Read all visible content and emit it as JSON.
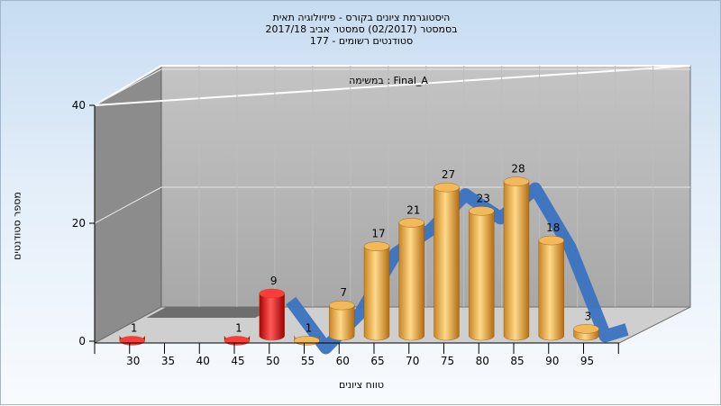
{
  "titles": {
    "line1": "היסטוגרמת ציונים בקורס - פיזיולוגיה תאית",
    "line2": "בסמסטר  (02/2017)  סמסטר אביב 2017/18",
    "line3": "סטודנטים רשומים - 177"
  },
  "chart_data": {
    "type": "bar",
    "title": "היסטוגרמת ציונים בקורס - פיזיולוגיה תאית",
    "xlabel": "טווח ציונים",
    "ylabel": "מספר סטודנטים",
    "annotation": "במשימה : Final_A",
    "categories": [
      "30",
      "35",
      "40",
      "45",
      "50",
      "55",
      "60",
      "65",
      "70",
      "75",
      "80",
      "85",
      "90",
      "95"
    ],
    "values": [
      1,
      null,
      null,
      1,
      9,
      1,
      7,
      17,
      21,
      27,
      23,
      28,
      18,
      3
    ],
    "bar_colors": [
      "red",
      null,
      null,
      "red",
      "red",
      "orange",
      "orange",
      "orange",
      "orange",
      "orange",
      "orange",
      "orange",
      "orange",
      "orange"
    ],
    "yticks": [
      0,
      20,
      40
    ],
    "ylim": [
      0,
      40
    ],
    "grid": true,
    "overlay_curve": "blue ribbon (distribution curve)",
    "colors": {
      "red_bar": "#e02020",
      "orange_bar": "#f0a030",
      "curve": "#3a72c0",
      "wall": "#b4b4b4",
      "left_wall": "#8a8a8a"
    }
  }
}
